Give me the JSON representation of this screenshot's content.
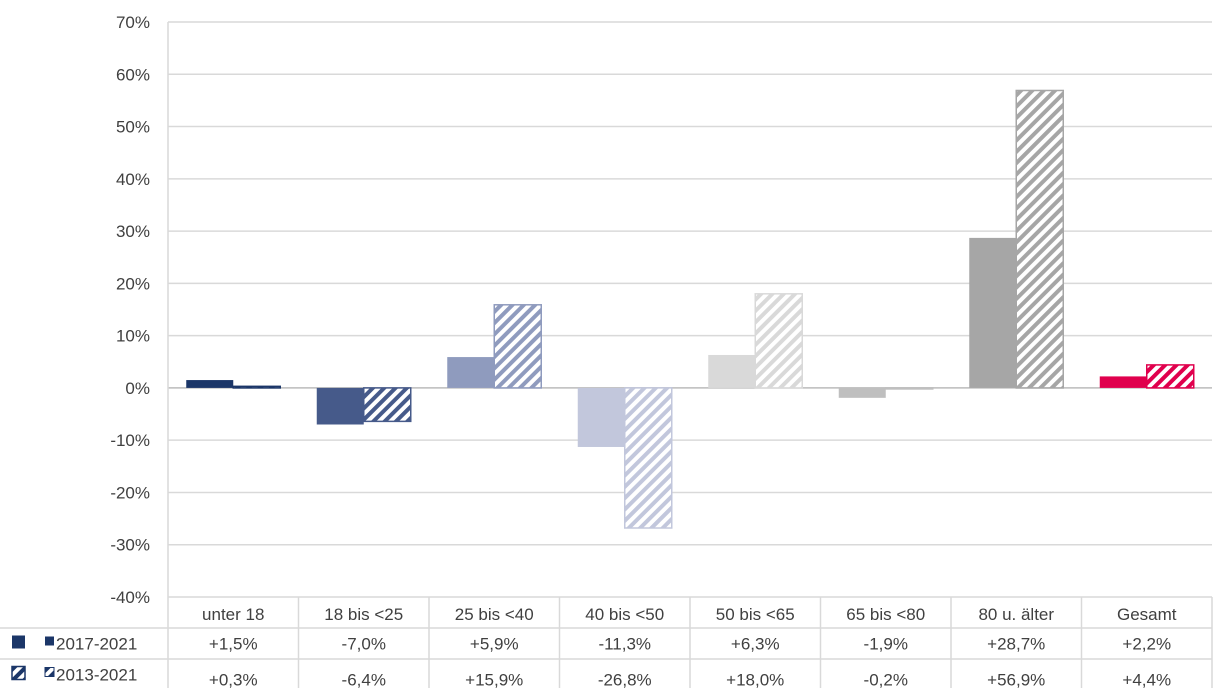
{
  "chart_data": {
    "type": "bar",
    "title": "",
    "xlabel": "",
    "ylabel": "",
    "ylim": [
      -40,
      70
    ],
    "y_ticks": [
      "-40%",
      "-30%",
      "-20%",
      "-10%",
      "0%",
      "10%",
      "20%",
      "30%",
      "40%",
      "50%",
      "60%",
      "70%"
    ],
    "grid": true,
    "legend_placement": "data-table-left",
    "categories": [
      "unter 18",
      "18 bis <25",
      "25 bis <40",
      "40 bis <50",
      "50 bis <65",
      "65 bis <80",
      "80 u. älter",
      "Gesamt"
    ],
    "category_colors": [
      "#1b3668",
      "#465a8a",
      "#8f9bbe",
      "#c2c7dc",
      "#d9d9d9",
      "#bfbfbf",
      "#a6a6a6",
      "#e0004d"
    ],
    "series": [
      {
        "name": "2017-2021",
        "pattern": "solid",
        "values": [
          1.5,
          -7.0,
          5.9,
          -11.3,
          6.3,
          -1.9,
          28.7,
          2.2
        ],
        "labels": [
          "+1,5%",
          "-7,0%",
          "+5,9%",
          "-11,3%",
          "+6,3%",
          "-1,9%",
          "+28,7%",
          "+2,2%"
        ]
      },
      {
        "name": "2013-2021",
        "pattern": "hatched",
        "values": [
          0.3,
          -6.4,
          15.9,
          -26.8,
          18.0,
          -0.2,
          56.9,
          4.4
        ],
        "labels": [
          "+0,3%",
          "-6,4%",
          "+15,9%",
          "-26,8%",
          "+18,0%",
          "-0,2%",
          "+56,9%",
          "+4,4%"
        ]
      }
    ]
  }
}
